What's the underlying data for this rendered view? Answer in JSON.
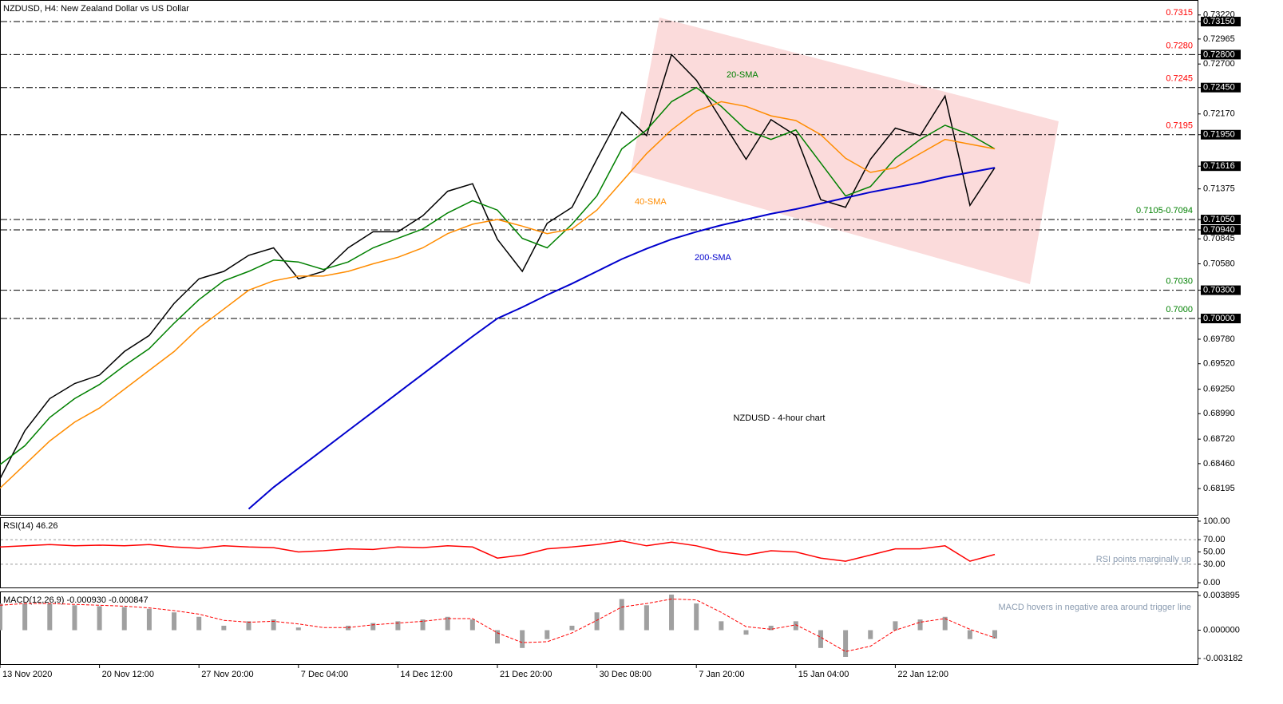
{
  "chart_data": [
    {
      "type": "line",
      "title": "NZDUSD, H4:  New Zealand Dollar vs US Dollar",
      "subtitle": "NZDUSD - 4-hour chart",
      "x": [
        0,
        11,
        22,
        33,
        44,
        55,
        66,
        77,
        88,
        99,
        110,
        121,
        132,
        143,
        154,
        165,
        176,
        187,
        198,
        209,
        220,
        231,
        242,
        253,
        264,
        275,
        286,
        297,
        308,
        319,
        330,
        341,
        352,
        363,
        374,
        385,
        396,
        407,
        418,
        429,
        440
      ],
      "xlim": [
        0,
        530.4
      ],
      "xticks": [
        {
          "value": 0,
          "label": "13 Nov 2020"
        },
        {
          "value": 44,
          "label": "20 Nov 12:00"
        },
        {
          "value": 88,
          "label": "27 Nov 20:00"
        },
        {
          "value": 132,
          "label": "7 Dec 04:00"
        },
        {
          "value": 176,
          "label": "14 Dec 12:00"
        },
        {
          "value": 220,
          "label": "21 Dec 20:00"
        },
        {
          "value": 264,
          "label": "30 Dec 08:00"
        },
        {
          "value": 308,
          "label": "7 Jan 20:00"
        },
        {
          "value": 352,
          "label": "15 Jan 04:00"
        },
        {
          "value": 396,
          "label": "22 Jan 12:00"
        }
      ],
      "ylim": [
        0.67917,
        0.73379
      ],
      "yticks": [
        {
          "value": 0.7322,
          "label": "0.73220"
        },
        {
          "value": 0.7315,
          "label": "0.73150",
          "highlight": true
        },
        {
          "value": 0.72965,
          "label": "0.72965"
        },
        {
          "value": 0.728,
          "label": "0.72800",
          "highlight": true
        },
        {
          "value": 0.727,
          "label": "0.72700"
        },
        {
          "value": 0.7245,
          "label": "0.72450",
          "highlight": true
        },
        {
          "value": 0.7217,
          "label": "0.72170"
        },
        {
          "value": 0.7195,
          "label": "0.71950",
          "highlight": true
        },
        {
          "value": 0.71616,
          "label": "0.71616",
          "highlight": true
        },
        {
          "value": 0.71375,
          "label": "0.71375"
        },
        {
          "value": 0.7105,
          "label": "0.71050",
          "highlight": true
        },
        {
          "value": 0.7094,
          "label": "0.70940",
          "highlight": true
        },
        {
          "value": 0.70845,
          "label": "0.70845"
        },
        {
          "value": 0.7058,
          "label": "0.70580"
        },
        {
          "value": 0.703,
          "label": "0.70300",
          "highlight": true
        },
        {
          "value": 0.7,
          "label": "0.70000",
          "highlight": true
        },
        {
          "value": 0.6978,
          "label": "0.69780"
        },
        {
          "value": 0.6952,
          "label": "0.69520"
        },
        {
          "value": 0.6925,
          "label": "0.69250"
        },
        {
          "value": 0.6899,
          "label": "0.68990"
        },
        {
          "value": 0.6872,
          "label": "0.68720"
        },
        {
          "value": 0.6846,
          "label": "0.68460"
        },
        {
          "value": 0.68195,
          "label": "0.68195"
        }
      ],
      "levels": [
        {
          "value": 0.7315,
          "label": "0.7315",
          "color": "#ff0000"
        },
        {
          "value": 0.728,
          "label": "0.7280",
          "color": "#ff0000"
        },
        {
          "value": 0.7245,
          "label": "0.7245",
          "color": "#ff0000"
        },
        {
          "value": 0.7195,
          "label": "0.7195",
          "color": "#ff0000"
        },
        {
          "value": 0.7105,
          "label": "0.7105-0.7094",
          "color": "#008000"
        },
        {
          "value": 0.7094
        },
        {
          "value": 0.703,
          "label": "0.7030",
          "color": "#008000"
        },
        {
          "value": 0.7,
          "label": "0.7000",
          "color": "#008000"
        }
      ],
      "series": [
        {
          "color": "#000000",
          "values": [
            0.683,
            0.6881,
            0.6915,
            0.6931,
            0.694,
            0.6965,
            0.6982,
            0.7016,
            0.7042,
            0.705,
            0.7067,
            0.7075,
            0.7042,
            0.705,
            0.7075,
            0.7092,
            0.7092,
            0.7109,
            0.7135,
            0.7143,
            0.7084,
            0.705,
            0.7101,
            0.7118,
            0.7169,
            0.7219,
            0.7194,
            0.728,
            0.7253,
            0.7211,
            0.7169,
            0.7211,
            0.7194,
            0.7126,
            0.7118,
            0.7169,
            0.7202,
            0.7194,
            0.7236,
            0.712,
            0.716
          ]
        },
        {
          "name": "20-SMA",
          "color": "#008000",
          "values": [
            0.6845,
            0.6865,
            0.6895,
            0.6915,
            0.693,
            0.695,
            0.6968,
            0.6995,
            0.702,
            0.704,
            0.705,
            0.7062,
            0.706,
            0.7052,
            0.706,
            0.7075,
            0.7085,
            0.7095,
            0.7112,
            0.7125,
            0.7115,
            0.7085,
            0.7075,
            0.71,
            0.713,
            0.718,
            0.72,
            0.723,
            0.7245,
            0.7225,
            0.72,
            0.719,
            0.72,
            0.7165,
            0.713,
            0.714,
            0.717,
            0.719,
            0.7205,
            0.7195,
            0.718
          ]
        },
        {
          "name": "40-SMA",
          "color": "#ff8c00",
          "values": [
            0.682,
            0.6845,
            0.687,
            0.689,
            0.6905,
            0.6925,
            0.6945,
            0.6965,
            0.699,
            0.701,
            0.703,
            0.704,
            0.7045,
            0.7045,
            0.705,
            0.7058,
            0.7065,
            0.7075,
            0.709,
            0.71,
            0.7105,
            0.7098,
            0.709,
            0.7095,
            0.7115,
            0.7145,
            0.7175,
            0.72,
            0.722,
            0.723,
            0.7225,
            0.7215,
            0.721,
            0.7195,
            0.717,
            0.7155,
            0.716,
            0.7175,
            0.719,
            0.7185,
            0.718
          ]
        },
        {
          "name": "200-SMA",
          "color": "#0000cd",
          "values": [
            null,
            null,
            null,
            null,
            null,
            null,
            null,
            null,
            null,
            null,
            0.6798,
            0.6821,
            0.6841,
            0.6861,
            0.6881,
            0.6901,
            0.6921,
            0.6941,
            0.6961,
            0.6981,
            0.7,
            0.7012,
            0.7025,
            0.7037,
            0.705,
            0.7063,
            0.7074,
            0.7084,
            0.7092,
            0.7099,
            0.7105,
            0.7111,
            0.7116,
            0.7122,
            0.7128,
            0.7134,
            0.7139,
            0.7144,
            0.715,
            0.7155,
            0.716
          ]
        }
      ]
    },
    {
      "type": "line",
      "title": "RSI(14) 46.26",
      "annotation": "RSI points marginally up",
      "ylim": [
        -9,
        106.4
      ],
      "yticks": [
        {
          "value": 100,
          "label": "100.00"
        },
        {
          "value": 70,
          "label": "70.00"
        },
        {
          "value": 50,
          "label": "50.00"
        },
        {
          "value": 30,
          "label": "30.00"
        },
        {
          "value": 0,
          "label": "0.00"
        }
      ],
      "levels": [
        70,
        30
      ],
      "series": [
        {
          "color": "#ff0000",
          "values": [
            58,
            60,
            62,
            60,
            61,
            60,
            62,
            58,
            56,
            60,
            58,
            57,
            50,
            52,
            55,
            54,
            58,
            57,
            60,
            58,
            40,
            45,
            55,
            58,
            62,
            68,
            60,
            66,
            60,
            50,
            45,
            52,
            50,
            40,
            35,
            45,
            55,
            55,
            60,
            35,
            46
          ]
        }
      ]
    },
    {
      "type": "macd",
      "title": "MACD(12,26,9) -0.000930 -0.000847",
      "annotation": "MACD hovers in negative area around trigger line",
      "ylim": [
        -0.00381,
        0.00435
      ],
      "yticks": [
        {
          "value": 0.003895,
          "label": "0.003895"
        },
        {
          "value": 0,
          "label": "0.000000"
        },
        {
          "value": -0.003182,
          "label": "-0.003182"
        }
      ],
      "series": [
        {
          "color": "#a0a0a0",
          "values": [
            0.003,
            0.003,
            0.003,
            0.0028,
            0.0027,
            0.0026,
            0.0024,
            0.002,
            0.0015,
            0.0005,
            0.001,
            0.0012,
            0.0003,
            0,
            0.0005,
            0.0008,
            0.001,
            0.0012,
            0.0015,
            0.0012,
            -0.0015,
            -0.002,
            -0.001,
            0.0005,
            0.002,
            0.0035,
            0.0028,
            0.004,
            0.003,
            0.001,
            -0.0005,
            0.0005,
            0.001,
            -0.002,
            -0.003,
            -0.001,
            0.001,
            0.0012,
            0.0015,
            -0.001,
            -0.00093
          ]
        },
        {
          "color": "#ff0000",
          "values": [
            0.0028,
            0.003,
            0.003,
            0.0029,
            0.0028,
            0.0027,
            0.0025,
            0.0022,
            0.0018,
            0.0011,
            0.0009,
            0.001,
            0.0007,
            0.0003,
            0.0003,
            0.0006,
            0.0008,
            0.001,
            0.0013,
            0.0013,
            -0.0003,
            -0.0014,
            -0.0013,
            -0.0003,
            0.0011,
            0.0026,
            0.003,
            0.0035,
            0.0034,
            0.002,
            0.0004,
            0.0001,
            0.0006,
            -0.0008,
            -0.0024,
            -0.0018,
            0,
            0.0009,
            0.0013,
            0.0001,
            -0.000847
          ]
        }
      ]
    }
  ]
}
